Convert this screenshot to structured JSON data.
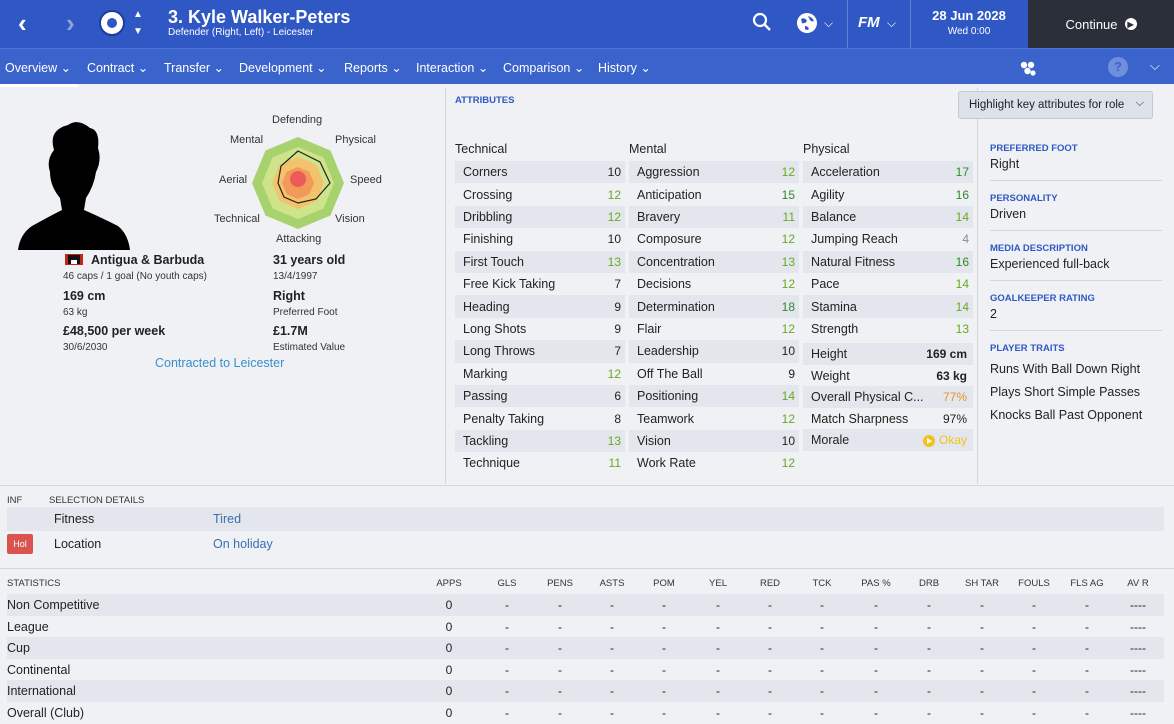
{
  "header": {
    "title": "3. Kyle Walker-Peters",
    "subtitle": "Defender (Right, Left) - Leicester",
    "date": "28 Jun 2028",
    "time": "Wed 0:00",
    "continue_label": "Continue",
    "logo": "FM"
  },
  "tabs": [
    {
      "label": "Overview ⌄"
    },
    {
      "label": "Contract ⌄"
    },
    {
      "label": "Transfer ⌄"
    },
    {
      "label": "Development ⌄"
    },
    {
      "label": "Reports ⌄"
    },
    {
      "label": "Interaction ⌄"
    },
    {
      "label": "Comparison ⌄"
    },
    {
      "label": "History ⌄"
    }
  ],
  "radar": {
    "labels": [
      "Defending",
      "Physical",
      "Speed",
      "Vision",
      "Attacking",
      "Technical",
      "Aerial",
      "Mental"
    ]
  },
  "profile": {
    "nation": "Antigua & Barbuda",
    "caps": "46 caps / 1 goal (No youth caps)",
    "age": "31 years old",
    "dob": "13/4/1997",
    "height": "169 cm",
    "weight": "63 kg",
    "foot": "Right",
    "foot_label": "Preferred Foot",
    "wage": "£48,500 per week",
    "contract_end": "30/6/2030",
    "value": "£1.7M",
    "value_label": "Estimated Value",
    "contracted": "Contracted to Leicester"
  },
  "attributes": {
    "header": "ATTRIBUTES",
    "highlight_label": "Highlight key attributes for role",
    "technical_title": "Technical",
    "mental_title": "Mental",
    "physical_title": "Physical",
    "technical": [
      {
        "name": "Corners",
        "value": "10"
      },
      {
        "name": "Crossing",
        "value": "12"
      },
      {
        "name": "Dribbling",
        "value": "12"
      },
      {
        "name": "Finishing",
        "value": "10"
      },
      {
        "name": "First Touch",
        "value": "13"
      },
      {
        "name": "Free Kick Taking",
        "value": "7"
      },
      {
        "name": "Heading",
        "value": "9"
      },
      {
        "name": "Long Shots",
        "value": "9"
      },
      {
        "name": "Long Throws",
        "value": "7"
      },
      {
        "name": "Marking",
        "value": "12"
      },
      {
        "name": "Passing",
        "value": "6"
      },
      {
        "name": "Penalty Taking",
        "value": "8"
      },
      {
        "name": "Tackling",
        "value": "13"
      },
      {
        "name": "Technique",
        "value": "11"
      }
    ],
    "mental": [
      {
        "name": "Aggression",
        "value": "12"
      },
      {
        "name": "Anticipation",
        "value": "15"
      },
      {
        "name": "Bravery",
        "value": "11"
      },
      {
        "name": "Composure",
        "value": "12"
      },
      {
        "name": "Concentration",
        "value": "13"
      },
      {
        "name": "Decisions",
        "value": "12"
      },
      {
        "name": "Determination",
        "value": "18"
      },
      {
        "name": "Flair",
        "value": "12"
      },
      {
        "name": "Leadership",
        "value": "10"
      },
      {
        "name": "Off The Ball",
        "value": "9"
      },
      {
        "name": "Positioning",
        "value": "14"
      },
      {
        "name": "Teamwork",
        "value": "12"
      },
      {
        "name": "Vision",
        "value": "10"
      },
      {
        "name": "Work Rate",
        "value": "12"
      }
    ],
    "physical": [
      {
        "name": "Acceleration",
        "value": "17"
      },
      {
        "name": "Agility",
        "value": "16"
      },
      {
        "name": "Balance",
        "value": "14"
      },
      {
        "name": "Jumping Reach",
        "value": "4"
      },
      {
        "name": "Natural Fitness",
        "value": "16"
      },
      {
        "name": "Pace",
        "value": "14"
      },
      {
        "name": "Stamina",
        "value": "14"
      },
      {
        "name": "Strength",
        "value": "13"
      }
    ],
    "physical_info": [
      {
        "name": "Height",
        "value": "169 cm"
      },
      {
        "name": "Weight",
        "value": "63 kg"
      },
      {
        "name": "Overall Physical C...",
        "value": "77%"
      },
      {
        "name": "Match Sharpness",
        "value": "97%"
      },
      {
        "name": "Morale",
        "value": "Okay"
      }
    ]
  },
  "info": {
    "foot_head": "PREFERRED FOOT",
    "foot": "Right",
    "personality_head": "PERSONALITY",
    "personality": "Driven",
    "media_head": "MEDIA DESCRIPTION",
    "media": "Experienced full-back",
    "gk_head": "GOALKEEPER RATING",
    "gk": "2",
    "traits_head": "PLAYER TRAITS",
    "traits": [
      "Runs With Ball Down Right",
      "Plays Short Simple Passes",
      "Knocks Ball Past Opponent"
    ]
  },
  "selection": {
    "inf_head": "INF",
    "head": "SELECTION DETAILS",
    "rows": [
      {
        "label": "Fitness",
        "value": "Tired"
      },
      {
        "label": "Location",
        "value": "On holiday",
        "badge": "Hol"
      }
    ]
  },
  "statistics": {
    "head": "STATISTICS",
    "columns": [
      "APPS",
      "GLS",
      "PENS",
      "ASTS",
      "POM",
      "YEL",
      "RED",
      "TCK",
      "PAS %",
      "DRB",
      "SH TAR",
      "FOULS",
      "FLS AG",
      "AV R"
    ],
    "rows": [
      {
        "name": "Non Competitive",
        "cells": [
          "0",
          "-",
          "-",
          "-",
          "-",
          "-",
          "-",
          "-",
          "-",
          "-",
          "-",
          "-",
          "-",
          "----"
        ]
      },
      {
        "name": "League",
        "cells": [
          "0",
          "-",
          "-",
          "-",
          "-",
          "-",
          "-",
          "-",
          "-",
          "-",
          "-",
          "-",
          "-",
          "----"
        ]
      },
      {
        "name": "Cup",
        "cells": [
          "0",
          "-",
          "-",
          "-",
          "-",
          "-",
          "-",
          "-",
          "-",
          "-",
          "-",
          "-",
          "-",
          "----"
        ]
      },
      {
        "name": "Continental",
        "cells": [
          "0",
          "-",
          "-",
          "-",
          "-",
          "-",
          "-",
          "-",
          "-",
          "-",
          "-",
          "-",
          "-",
          "----"
        ]
      },
      {
        "name": "International",
        "cells": [
          "0",
          "-",
          "-",
          "-",
          "-",
          "-",
          "-",
          "-",
          "-",
          "-",
          "-",
          "-",
          "-",
          "----"
        ]
      },
      {
        "name": "Overall (Club)",
        "cells": [
          "0",
          "-",
          "-",
          "-",
          "-",
          "-",
          "-",
          "-",
          "-",
          "-",
          "-",
          "-",
          "-",
          "----"
        ]
      }
    ]
  },
  "colors": {
    "header_bg": "#2f58c4",
    "nav_bg": "#3a63cc",
    "continue_bg": "#2b2f3a",
    "good_value": "#6aa821",
    "great_value": "#2e8a2a",
    "warning": "#e0982a"
  },
  "icons": [
    "back-arrow-icon",
    "forward-arrow-icon",
    "search-icon",
    "globe-icon",
    "chevron-down-icon",
    "help-icon",
    "cluster-icon"
  ]
}
